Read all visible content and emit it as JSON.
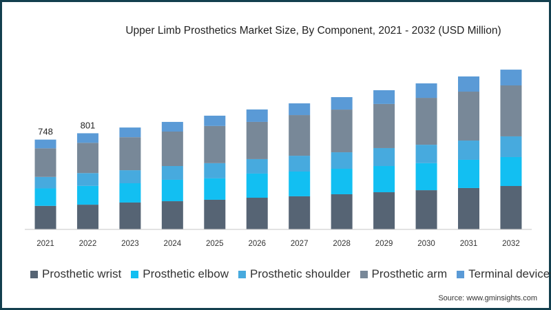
{
  "chart_data": {
    "type": "bar",
    "stacked": true,
    "title": "Upper Limb Prosthetics Market Size, By Component, 2021 - 2032  (USD Million)",
    "categories": [
      "2021",
      "2022",
      "2023",
      "2024",
      "2025",
      "2026",
      "2027",
      "2028",
      "2029",
      "2030",
      "2031",
      "2032"
    ],
    "series": [
      {
        "name": "Prosthetic wrist",
        "color": "#566474",
        "values": [
          194,
          204,
          222,
          233,
          245,
          262,
          274,
          291,
          308,
          325,
          343,
          360
        ]
      },
      {
        "name": "Prosthetic elbow",
        "color": "#12bff2",
        "values": [
          146,
          157,
          161,
          179,
          179,
          202,
          207,
          213,
          219,
          226,
          236,
          242
        ]
      },
      {
        "name": "Prosthetic shoulder",
        "color": "#47aade",
        "values": [
          96,
          107,
          109,
          115,
          127,
          121,
          132,
          138,
          150,
          154,
          161,
          173
        ]
      },
      {
        "name": "Prosthetic arm",
        "color": "#788898",
        "values": [
          239,
          253,
          276,
          288,
          311,
          311,
          340,
          357,
          369,
          392,
          409,
          426
        ]
      },
      {
        "name": "Terminal devices",
        "color": "#5a9ad6",
        "values": [
          73,
          80,
          81,
          81,
          86,
          104,
          98,
          104,
          115,
          121,
          127,
          132
        ]
      }
    ],
    "data_labels": {
      "2021": "748",
      "2022": "801"
    },
    "ylim": [
      0,
      1400
    ],
    "grid": false,
    "legend_position": "bottom"
  },
  "source": "Source: www.gminsights.com"
}
